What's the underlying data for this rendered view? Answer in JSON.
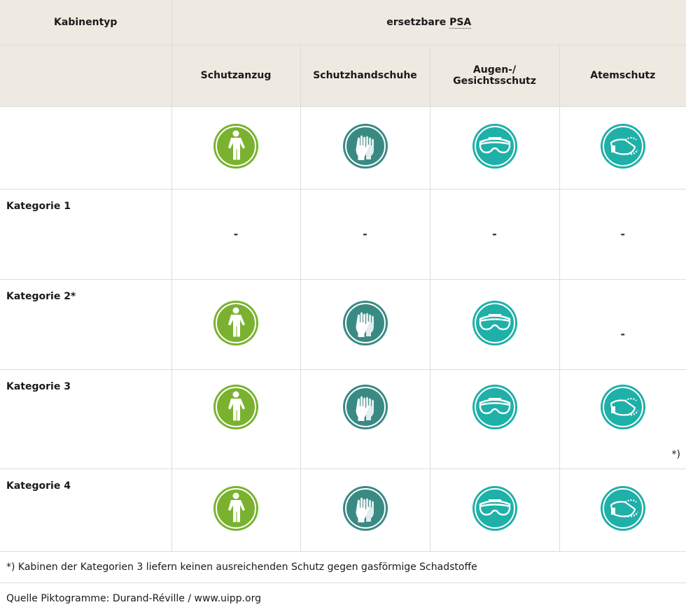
{
  "table": {
    "header": {
      "cabin_type": "Kabinentyp",
      "replaceable_prefix": "ersetzbare ",
      "replaceable_abbr": "PSA",
      "columns": [
        "Schutzanzug",
        "Schutzhandschuhe",
        "Augen-/",
        "Gesichtsschutz",
        "Atemschutz"
      ]
    },
    "rows": [
      {
        "label": "Kategorie 1",
        "suit": "-",
        "gloves": "-",
        "eyes": "-",
        "breath": "-"
      },
      {
        "label": "Kategorie 2*",
        "breath": "-"
      },
      {
        "label": "Kategorie 3",
        "breath_note": "*)"
      },
      {
        "label": "Kategorie 4"
      }
    ]
  },
  "icons": {
    "suit": {
      "name": "protective-suit-icon",
      "color": "#7ab230"
    },
    "gloves": {
      "name": "protective-gloves-icon",
      "color": "#3a8a84"
    },
    "eyes": {
      "name": "goggles-icon",
      "color": "#1fb0a8"
    },
    "breath": {
      "name": "respirator-icon",
      "color": "#1fb0a8"
    }
  },
  "footnote": "*) Kabinen der Kategorien 3 liefern keinen ausreichenden Schutz gegen gasförmige Schadstoffe",
  "source": "Quelle Piktogramme: Durand-Réville / www.uipp.org"
}
